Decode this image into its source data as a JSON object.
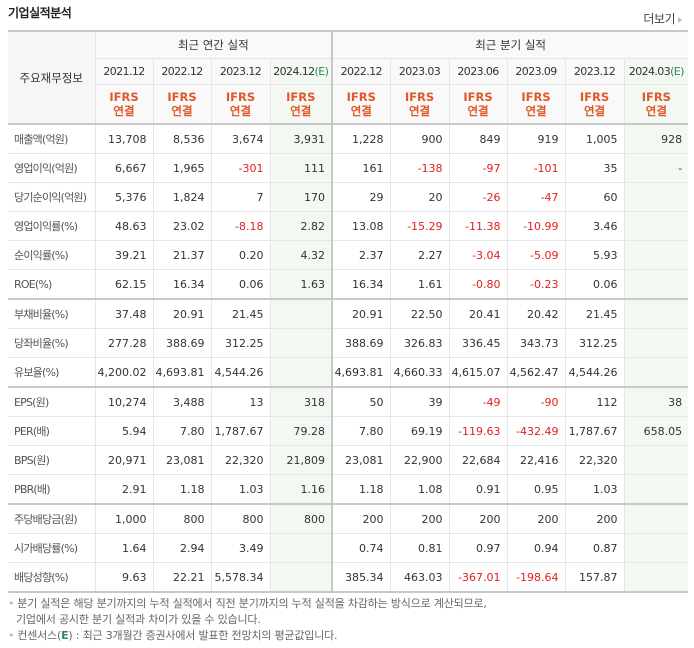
{
  "header": {
    "title": "기업실적분석",
    "more_label": "더보기"
  },
  "table": {
    "row_header_label": "주요재무정보",
    "groups": [
      {
        "label": "최근 연간 실적"
      },
      {
        "label": "최근 분기 실적"
      }
    ],
    "periods": [
      {
        "label": "2021.12",
        "estimate": ""
      },
      {
        "label": "2022.12",
        "estimate": ""
      },
      {
        "label": "2023.12",
        "estimate": ""
      },
      {
        "label": "2024.12",
        "estimate": "(E)"
      },
      {
        "label": "2022.12",
        "estimate": ""
      },
      {
        "label": "2023.03",
        "estimate": ""
      },
      {
        "label": "2023.06",
        "estimate": ""
      },
      {
        "label": "2023.09",
        "estimate": ""
      },
      {
        "label": "2023.12",
        "estimate": ""
      },
      {
        "label": "2024.03",
        "estimate": "(E)"
      }
    ],
    "basis": {
      "line1": "IFRS",
      "line2": "연결"
    },
    "rows": [
      {
        "label": "매출액(억원)",
        "values": [
          "13,708",
          "8,536",
          "3,674",
          "3,931",
          "1,228",
          "900",
          "849",
          "919",
          "1,005",
          "928"
        ]
      },
      {
        "label": "영업이익(억원)",
        "values": [
          "6,667",
          "1,965",
          "-301",
          "111",
          "161",
          "-138",
          "-97",
          "-101",
          "35",
          "-"
        ]
      },
      {
        "label": "당기순이익(억원)",
        "values": [
          "5,376",
          "1,824",
          "7",
          "170",
          "29",
          "20",
          "-26",
          "-47",
          "60",
          ""
        ]
      },
      {
        "label": "영업이익률(%)",
        "values": [
          "48.63",
          "23.02",
          "-8.18",
          "2.82",
          "13.08",
          "-15.29",
          "-11.38",
          "-10.99",
          "3.46",
          ""
        ]
      },
      {
        "label": "순이익률(%)",
        "values": [
          "39.21",
          "21.37",
          "0.20",
          "4.32",
          "2.37",
          "2.27",
          "-3.04",
          "-5.09",
          "5.93",
          ""
        ]
      },
      {
        "label": "ROE(%)",
        "values": [
          "62.15",
          "16.34",
          "0.06",
          "1.63",
          "16.34",
          "1.61",
          "-0.80",
          "-0.23",
          "0.06",
          ""
        ]
      },
      {
        "label": "부채비율(%)",
        "values": [
          "37.48",
          "20.91",
          "21.45",
          "",
          "20.91",
          "22.50",
          "20.41",
          "20.42",
          "21.45",
          ""
        ]
      },
      {
        "label": "당좌비율(%)",
        "values": [
          "277.28",
          "388.69",
          "312.25",
          "",
          "388.69",
          "326.83",
          "336.45",
          "343.73",
          "312.25",
          ""
        ]
      },
      {
        "label": "유보율(%)",
        "values": [
          "4,200.02",
          "4,693.81",
          "4,544.26",
          "",
          "4,693.81",
          "4,660.33",
          "4,615.07",
          "4,562.47",
          "4,544.26",
          ""
        ]
      },
      {
        "label": "EPS(원)",
        "values": [
          "10,274",
          "3,488",
          "13",
          "318",
          "50",
          "39",
          "-49",
          "-90",
          "112",
          "38"
        ]
      },
      {
        "label": "PER(배)",
        "values": [
          "5.94",
          "7.80",
          "1,787.67",
          "79.28",
          "7.80",
          "69.19",
          "-119.63",
          "-432.49",
          "1,787.67",
          "658.05"
        ]
      },
      {
        "label": "BPS(원)",
        "values": [
          "20,971",
          "23,081",
          "22,320",
          "21,809",
          "23,081",
          "22,900",
          "22,684",
          "22,416",
          "22,320",
          ""
        ]
      },
      {
        "label": "PBR(배)",
        "values": [
          "2.91",
          "1.18",
          "1.03",
          "1.16",
          "1.18",
          "1.08",
          "0.91",
          "0.95",
          "1.03",
          ""
        ]
      },
      {
        "label": "주당배당금(원)",
        "values": [
          "1,000",
          "800",
          "800",
          "800",
          "200",
          "200",
          "200",
          "200",
          "200",
          ""
        ]
      },
      {
        "label": "시가배당률(%)",
        "values": [
          "1.64",
          "2.94",
          "3.49",
          "",
          "0.74",
          "0.81",
          "0.97",
          "0.94",
          "0.87",
          ""
        ]
      },
      {
        "label": "배당성향(%)",
        "values": [
          "9.63",
          "22.21",
          "5,578.34",
          "",
          "385.34",
          "463.03",
          "-367.01",
          "-198.64",
          "157.87",
          ""
        ]
      }
    ]
  },
  "notes": {
    "line1": "분기 실적은 해당 분기까지의 누적 실적에서 직전 분기까지의 누적 실적을 차감하는 방식으로 계산되므로,",
    "line2": "기업에서 공시한 분기 실적과 차이가 있을 수 있습니다.",
    "line3_prefix": "컨센서스(",
    "line3_e": "E",
    "line3_suffix": ") : 최근 3개월간 증권사에서 발표한 전망치의 평균값입니다."
  },
  "colors": {
    "negative": "#e02020",
    "ifrs": "#e0582a",
    "estimate": "#2e8b57",
    "estimate_bg": "#f3f8f3"
  }
}
